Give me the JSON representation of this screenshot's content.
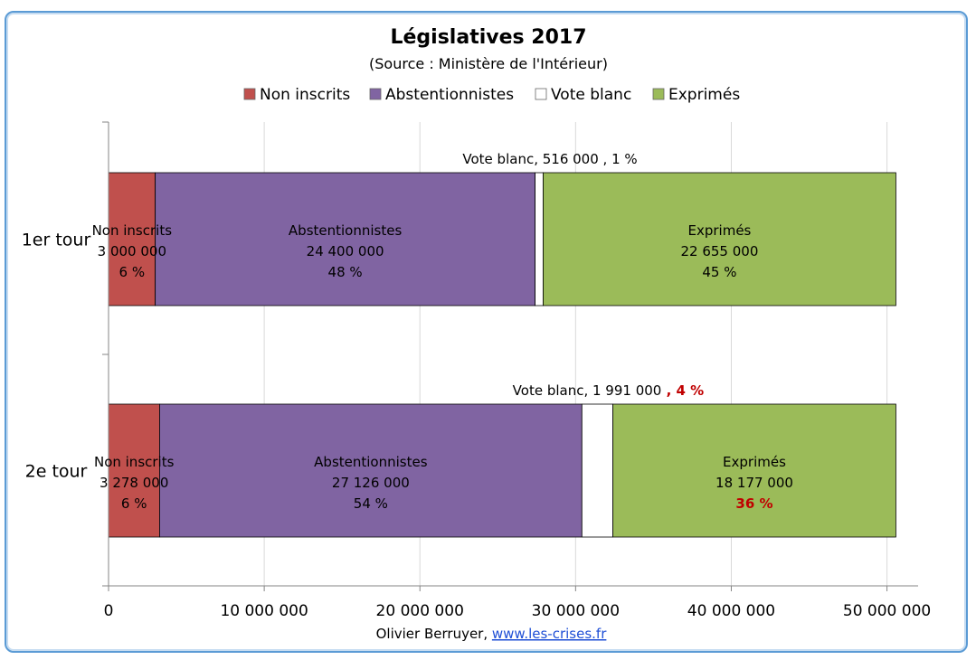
{
  "chart_data": {
    "type": "bar",
    "orientation": "horizontal",
    "stacked": true,
    "title": "Législatives 2017",
    "subtitle": "(Source : Ministère de l'Intérieur)",
    "categories": [
      "1er tour",
      "2e tour"
    ],
    "series": [
      {
        "name": "Non inscrits",
        "color": "#c0504d",
        "values": [
          3000000,
          3278000
        ],
        "labels": [
          [
            "Non inscrits",
            "3 000 000",
            "6 %"
          ],
          [
            "Non inscrits",
            "3 278 000",
            "6 %"
          ]
        ]
      },
      {
        "name": "Abstentionnistes",
        "color": "#8064a2",
        "values": [
          24400000,
          27126000
        ],
        "labels": [
          [
            "Abstentionnistes",
            "24 400 000",
            "48 %"
          ],
          [
            "Abstentionnistes",
            "27 126 000",
            "54 %"
          ]
        ]
      },
      {
        "name": "Vote blanc",
        "color": "#ffffff",
        "values": [
          516000,
          1991000
        ],
        "labels": [
          [
            "Vote blanc, 516 000 , 1 %"
          ],
          [
            "Vote blanc, 1 991 000 , 4 %"
          ]
        ]
      },
      {
        "name": "Exprimés",
        "color": "#9bbb59",
        "values": [
          22655000,
          18177000
        ],
        "labels": [
          [
            "Exprimés",
            "22 655 000",
            "45 %"
          ],
          [
            "Exprimés",
            "18 177 000",
            "36 %"
          ]
        ]
      }
    ],
    "blank_labels": [
      {
        "text": "Vote blanc, 516 000",
        "pct": " , 1 %",
        "pct_highlight": false
      },
      {
        "text": "Vote blanc, 1 991 000",
        "pct": " , 4 %",
        "pct_highlight": true
      }
    ],
    "highlight_exprimes_pct": [
      false,
      true
    ],
    "xlim": [
      0,
      52000000
    ],
    "xticks": [
      0,
      10000000,
      20000000,
      30000000,
      40000000,
      50000000
    ],
    "xtick_labels": [
      "0",
      "10 000 000",
      "20 000 000",
      "30 000 000",
      "40 000 000",
      "50 000 000"
    ],
    "grid": true,
    "legend_position": "top",
    "highlight_color": "#c00000"
  },
  "credit": {
    "author": "Olivier  Berruyer, ",
    "link": "www.les-crises.fr"
  }
}
